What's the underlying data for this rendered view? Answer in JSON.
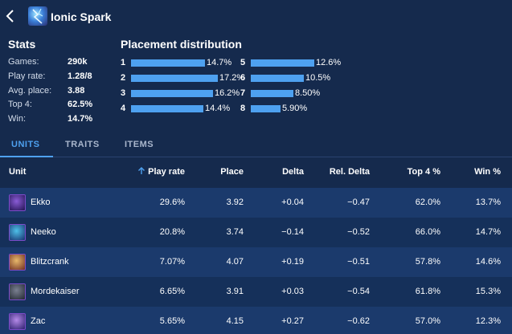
{
  "header": {
    "title": "Ionic Spark",
    "back_icon": "chevron-left-icon",
    "item_icon": "ionic-spark-icon"
  },
  "stats": {
    "title": "Stats",
    "items": [
      {
        "label": "Games:",
        "value": "290k"
      },
      {
        "label": "Play rate:",
        "value": "1.28/8"
      },
      {
        "label": "Avg. place:",
        "value": "3.88"
      },
      {
        "label": "Top 4:",
        "value": "62.5%"
      },
      {
        "label": "Win:",
        "value": "14.7%"
      }
    ]
  },
  "placement": {
    "title": "Placement distribution",
    "items": [
      {
        "rank": "1",
        "value": "14.7%",
        "pct": 14.7
      },
      {
        "rank": "2",
        "value": "17.2%",
        "pct": 17.2
      },
      {
        "rank": "3",
        "value": "16.2%",
        "pct": 16.2
      },
      {
        "rank": "4",
        "value": "14.4%",
        "pct": 14.4
      },
      {
        "rank": "5",
        "value": "12.6%",
        "pct": 12.6
      },
      {
        "rank": "6",
        "value": "10.5%",
        "pct": 10.5
      },
      {
        "rank": "7",
        "value": "8.50%",
        "pct": 8.5
      },
      {
        "rank": "8",
        "value": "5.90%",
        "pct": 5.9
      }
    ]
  },
  "tabs": [
    {
      "label": "UNITS",
      "active": true
    },
    {
      "label": "TRAITS",
      "active": false
    },
    {
      "label": "ITEMS",
      "active": false
    }
  ],
  "table": {
    "headers": [
      "Unit",
      "Play rate",
      "Place",
      "Delta",
      "Rel. Delta",
      "Top 4 %",
      "Win %"
    ],
    "sort_icon": "arrow-up-icon",
    "rows": [
      {
        "unit": "Ekko",
        "play_rate": "29.6%",
        "place": "3.92",
        "delta": "+0.04",
        "rel_delta": "−0.47",
        "top4": "62.0%",
        "win": "13.7%"
      },
      {
        "unit": "Neeko",
        "play_rate": "20.8%",
        "place": "3.74",
        "delta": "−0.14",
        "rel_delta": "−0.52",
        "top4": "66.0%",
        "win": "14.7%"
      },
      {
        "unit": "Blitzcrank",
        "play_rate": "7.07%",
        "place": "4.07",
        "delta": "+0.19",
        "rel_delta": "−0.51",
        "top4": "57.8%",
        "win": "14.6%"
      },
      {
        "unit": "Mordekaiser",
        "play_rate": "6.65%",
        "place": "3.91",
        "delta": "+0.03",
        "rel_delta": "−0.54",
        "top4": "61.8%",
        "win": "15.3%"
      },
      {
        "unit": "Zac",
        "play_rate": "5.65%",
        "place": "4.15",
        "delta": "+0.27",
        "rel_delta": "−0.62",
        "top4": "57.0%",
        "win": "12.3%"
      }
    ]
  },
  "colors": {
    "background": "#152a4d",
    "accent": "#4ea1f0",
    "row_odd": "#1b3a6c",
    "row_even": "#15305a"
  }
}
